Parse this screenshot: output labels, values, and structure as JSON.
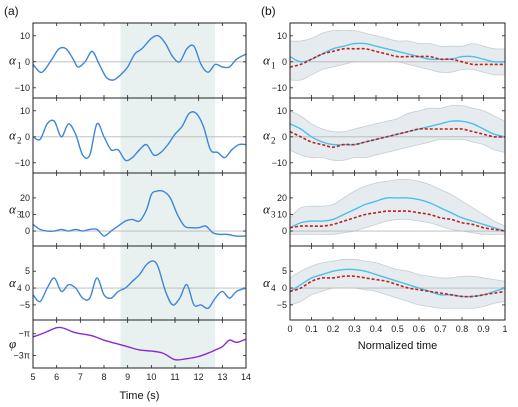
{
  "chart_data": [
    {
      "type": "line",
      "panel": "(a)",
      "xlabel": "Time (s)",
      "xlim": [
        5,
        14
      ],
      "xticks": [
        5,
        6,
        7,
        8,
        9,
        10,
        11,
        12,
        13,
        14
      ],
      "highlight_interval": [
        8.7,
        12.7
      ],
      "subplots": [
        {
          "ylabel": "α",
          "ysub": "1",
          "ylim": [
            -12,
            13
          ],
          "yticks": [
            -10,
            0,
            10
          ],
          "x": [
            5.0,
            5.3,
            5.5,
            5.8,
            6.1,
            6.4,
            6.7,
            6.9,
            7.2,
            7.5,
            7.8,
            8.1,
            8.4,
            8.7,
            9.0,
            9.3,
            9.6,
            10.0,
            10.3,
            10.6,
            10.9,
            11.2,
            11.5,
            11.8,
            12.1,
            12.4,
            12.7,
            13.0,
            13.3,
            13.6,
            14.0
          ],
          "y": [
            -1,
            -4,
            -3,
            1,
            5,
            5,
            1,
            -2,
            0,
            4,
            -1,
            -6,
            -7,
            -5,
            -2,
            3,
            5,
            9,
            10,
            7,
            2,
            0,
            5,
            6,
            -1,
            -4,
            -1,
            -2,
            -2,
            1,
            3
          ]
        },
        {
          "ylabel": "α",
          "ysub": "2",
          "ylim": [
            -12,
            13
          ],
          "yticks": [
            -10,
            0,
            10
          ],
          "x": [
            5.0,
            5.3,
            5.6,
            5.9,
            6.2,
            6.5,
            6.8,
            7.1,
            7.4,
            7.7,
            8.0,
            8.3,
            8.6,
            8.9,
            9.2,
            9.5,
            9.8,
            10.1,
            10.4,
            10.7,
            11.0,
            11.3,
            11.6,
            11.9,
            12.2,
            12.5,
            12.8,
            13.1,
            13.4,
            13.7,
            14.0
          ],
          "y": [
            0,
            -1,
            5,
            6,
            0,
            5,
            1,
            -7,
            -7,
            5,
            0,
            -5,
            -5,
            -9,
            -8,
            -5,
            -3,
            -7,
            -6,
            -3,
            1,
            4,
            9,
            9,
            4,
            -5,
            -6,
            -8,
            -5,
            -3,
            -3
          ]
        },
        {
          "ylabel": "α",
          "ysub": "3",
          "ylim": [
            -6,
            32
          ],
          "yticks": [
            0,
            10,
            20
          ],
          "x": [
            5.0,
            5.3,
            5.6,
            5.9,
            6.2,
            6.5,
            6.8,
            7.1,
            7.4,
            7.7,
            8.0,
            8.3,
            8.6,
            8.9,
            9.2,
            9.5,
            9.8,
            10.0,
            10.2,
            10.5,
            10.8,
            11.1,
            11.4,
            11.7,
            12.0,
            12.3,
            12.6,
            12.9,
            13.2,
            13.6,
            14.0
          ],
          "y": [
            4,
            1,
            0,
            0,
            1,
            0,
            1,
            0,
            1,
            1,
            -3,
            0,
            3,
            6,
            7,
            6,
            13,
            22,
            24,
            24,
            20,
            10,
            3,
            2,
            2,
            3,
            -1,
            -2,
            -2,
            -3,
            -3
          ]
        },
        {
          "ylabel": "α",
          "ysub": "4",
          "ylim": [
            -8,
            11
          ],
          "yticks": [
            -5,
            0,
            5
          ],
          "x": [
            5.0,
            5.3,
            5.6,
            5.9,
            6.2,
            6.5,
            6.8,
            7.1,
            7.4,
            7.7,
            8.0,
            8.3,
            8.6,
            8.9,
            9.2,
            9.5,
            9.8,
            10.1,
            10.3,
            10.6,
            10.9,
            11.2,
            11.5,
            11.8,
            12.1,
            12.4,
            12.7,
            13.0,
            13.3,
            13.6,
            14.0
          ],
          "y": [
            -2,
            -4,
            0,
            3,
            -1,
            1,
            0,
            -3,
            -3,
            3,
            -2,
            -3,
            -1,
            0,
            2,
            4,
            7,
            8,
            6,
            -1,
            -5,
            -3,
            1,
            -5,
            -5,
            -6,
            -3,
            -1,
            -3,
            -1,
            0
          ]
        },
        {
          "ylabel": "φ",
          "ysub": "",
          "ylim": [
            -3.7,
            -0.2
          ],
          "yticks": [
            -1,
            -3
          ],
          "ytick_labels": [
            "−π",
            "−3π"
          ],
          "x": [
            5.0,
            5.5,
            6.0,
            6.3,
            6.7,
            7.0,
            7.5,
            8.0,
            8.5,
            9.0,
            9.5,
            10.0,
            10.5,
            11.0,
            11.5,
            12.0,
            12.5,
            12.7,
            13.0,
            13.3,
            13.6,
            14.0
          ],
          "y": [
            -1.3,
            -0.9,
            -0.45,
            -0.5,
            -0.85,
            -1.0,
            -1.2,
            -1.6,
            -1.9,
            -2.2,
            -2.5,
            -2.6,
            -2.8,
            -3.4,
            -3.3,
            -3.1,
            -2.7,
            -2.5,
            -2.2,
            -1.6,
            -1.8,
            -1.5
          ]
        }
      ]
    },
    {
      "type": "line",
      "panel": "(b)",
      "xlabel": "Normalized time",
      "xlim": [
        0,
        1
      ],
      "xticks": [
        0,
        0.1,
        0.2,
        0.3,
        0.4,
        0.5,
        0.6,
        0.7,
        0.8,
        0.9,
        1
      ],
      "xtick_labels": [
        "0",
        "0.1",
        "0.2",
        "0.3",
        "0.4",
        "0.5",
        "0.6",
        "0.7",
        "0.8",
        "0.9",
        "1"
      ],
      "colors": {
        "blue": "#4cc0e8",
        "red": "#c0201e",
        "band": "#e5ebee",
        "band_edge": "#c6cfd4"
      },
      "subplots": [
        {
          "ylabel": "α",
          "ysub": "1",
          "ylim": [
            -12,
            13
          ],
          "yticks": [
            -10,
            0,
            10
          ],
          "x": [
            0,
            0.05,
            0.1,
            0.15,
            0.2,
            0.25,
            0.3,
            0.35,
            0.4,
            0.45,
            0.5,
            0.55,
            0.6,
            0.65,
            0.7,
            0.75,
            0.8,
            0.85,
            0.9,
            0.95,
            1
          ],
          "blue": [
            2,
            0,
            1,
            3,
            5,
            6,
            7,
            7,
            6,
            5,
            4,
            3,
            2,
            1,
            1,
            1,
            2,
            2,
            1,
            0,
            0
          ],
          "red": [
            -2,
            -1,
            1,
            3,
            4,
            5,
            5,
            5,
            4,
            3,
            2,
            2,
            2,
            2,
            1,
            1,
            0,
            -1,
            -1,
            -1,
            -1
          ],
          "band_upper": [
            8,
            8,
            9,
            11,
            12,
            12,
            12,
            11,
            10,
            9,
            8,
            8,
            7,
            7,
            6,
            6,
            6,
            7,
            6,
            5,
            5
          ],
          "band_lower": [
            -7,
            -7,
            -5,
            -3,
            -2,
            -1,
            0,
            0,
            0,
            0,
            0,
            -1,
            -2,
            -3,
            -4,
            -4,
            -3,
            -3,
            -4,
            -5,
            -5
          ]
        },
        {
          "ylabel": "α",
          "ysub": "2",
          "ylim": [
            -12,
            13
          ],
          "yticks": [
            -10,
            0,
            10
          ],
          "x": [
            0,
            0.05,
            0.1,
            0.15,
            0.2,
            0.25,
            0.3,
            0.35,
            0.4,
            0.45,
            0.5,
            0.55,
            0.6,
            0.65,
            0.7,
            0.75,
            0.8,
            0.85,
            0.9,
            0.95,
            1
          ],
          "blue": [
            5,
            3,
            0,
            -2,
            -3,
            -3,
            -3,
            -2,
            -1,
            0,
            1,
            2,
            3,
            4,
            5,
            6,
            6,
            5,
            3,
            1,
            0
          ],
          "red": [
            2,
            0,
            -2,
            -3,
            -4,
            -3,
            -3,
            -2,
            -1,
            0,
            1,
            2,
            3,
            3,
            3,
            3,
            3,
            2,
            1,
            0,
            0
          ],
          "band_upper": [
            10,
            8,
            5,
            3,
            2,
            2,
            3,
            4,
            5,
            6,
            7,
            9,
            10,
            11,
            11,
            12,
            12,
            11,
            10,
            8,
            6
          ],
          "band_lower": [
            -5,
            -7,
            -8,
            -8,
            -9,
            -9,
            -8,
            -8,
            -7,
            -6,
            -5,
            -4,
            -3,
            -2,
            -1,
            -1,
            -1,
            -2,
            -3,
            -5,
            -6
          ]
        },
        {
          "ylabel": "α",
          "ysub": "3",
          "ylim": [
            -6,
            32
          ],
          "yticks": [
            0,
            10,
            20
          ],
          "x": [
            0,
            0.05,
            0.1,
            0.15,
            0.2,
            0.25,
            0.3,
            0.35,
            0.4,
            0.45,
            0.5,
            0.55,
            0.6,
            0.65,
            0.7,
            0.75,
            0.8,
            0.85,
            0.9,
            0.95,
            1
          ],
          "blue": [
            2,
            5,
            6,
            6,
            7,
            10,
            13,
            16,
            18,
            20,
            20,
            20,
            19,
            17,
            14,
            11,
            8,
            6,
            4,
            2,
            0
          ],
          "red": [
            2,
            3,
            3,
            3,
            4,
            6,
            8,
            10,
            11,
            12,
            12,
            12,
            11,
            10,
            8,
            7,
            5,
            4,
            2,
            1,
            0
          ],
          "band_upper": [
            8,
            14,
            15,
            15,
            16,
            20,
            24,
            27,
            29,
            30,
            31,
            31,
            30,
            28,
            25,
            22,
            18,
            14,
            10,
            6,
            3
          ],
          "band_lower": [
            -2,
            -2,
            -2,
            -2,
            -2,
            -1,
            0,
            2,
            4,
            6,
            7,
            7,
            6,
            5,
            3,
            1,
            0,
            -1,
            -2,
            -2,
            -2
          ]
        },
        {
          "ylabel": "α",
          "ysub": "4",
          "ylim": [
            -8,
            11
          ],
          "yticks": [
            -5,
            0,
            5
          ],
          "x": [
            0,
            0.05,
            0.1,
            0.15,
            0.2,
            0.25,
            0.3,
            0.35,
            0.4,
            0.45,
            0.5,
            0.55,
            0.6,
            0.65,
            0.7,
            0.75,
            0.8,
            0.85,
            0.9,
            0.95,
            1
          ],
          "blue": [
            -1,
            1,
            3,
            4,
            5,
            5.5,
            5.5,
            5,
            4,
            3,
            2,
            1,
            0,
            -1,
            -2,
            -2,
            -2.5,
            -2.5,
            -2,
            -1,
            0
          ],
          "red": [
            -1,
            0,
            2,
            3,
            3,
            3.5,
            3.5,
            3,
            2.5,
            2,
            1,
            0,
            -0.5,
            -1,
            -1.5,
            -2,
            -2.5,
            -2.5,
            -2,
            -1.5,
            -1
          ],
          "band_upper": [
            3,
            5,
            6.5,
            7.5,
            8,
            8.5,
            8.5,
            8,
            7.5,
            6.5,
            5.5,
            5,
            4,
            3.5,
            3,
            3,
            3.5,
            3.5,
            3,
            2.5,
            2
          ],
          "band_lower": [
            -5,
            -4,
            -2,
            -1,
            0,
            0,
            0,
            -0.5,
            -1,
            -2,
            -3,
            -4,
            -5,
            -5.5,
            -6,
            -6,
            -6,
            -6,
            -5.5,
            -4.5,
            -4
          ]
        }
      ]
    }
  ]
}
